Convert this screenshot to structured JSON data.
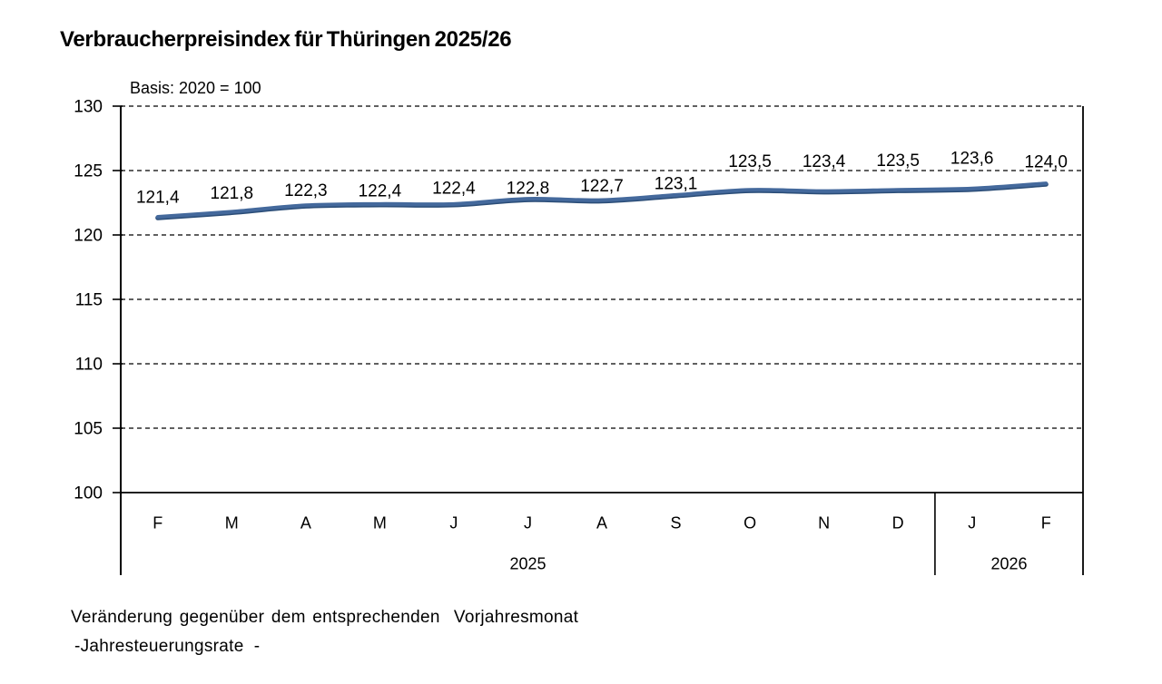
{
  "chart_data": {
    "type": "line",
    "title": "Verbraucherpreisindex für Thüringen 2025/26",
    "subtitle": "Basis: 2020 = 100",
    "categories": [
      "F",
      "M",
      "A",
      "M",
      "J",
      "J",
      "A",
      "S",
      "O",
      "N",
      "D",
      "J",
      "F"
    ],
    "year_groups": [
      {
        "label": "2025",
        "start": 0,
        "span": 11
      },
      {
        "label": "2026",
        "start": 11,
        "span": 2
      }
    ],
    "series": [
      {
        "name": "Verbraucherpreisindex",
        "values": [
          121.4,
          121.8,
          122.3,
          122.4,
          122.4,
          122.8,
          122.7,
          123.1,
          123.5,
          123.4,
          123.5,
          123.6,
          124.0
        ]
      }
    ],
    "value_labels": [
      "121,4",
      "121,8",
      "122,3",
      "122,4",
      "122,4",
      "122,8",
      "122,7",
      "123,1",
      "123,5",
      "123,4",
      "123,5",
      "123,6",
      "124,0"
    ],
    "yticks": [
      100,
      105,
      110,
      115,
      120,
      125,
      130
    ],
    "ylim": [
      100,
      130
    ],
    "grid": "horizontal-dashed",
    "legend": "none",
    "line_color": "#44699c",
    "line_shadow_color": "#2b4d77",
    "axis_color": "#000000"
  },
  "footer": {
    "line1": "Veränderung gegenüber dem entsprechenden  Vorjahresmonat",
    "line2": "-Jahresteuerungsrate  -"
  }
}
